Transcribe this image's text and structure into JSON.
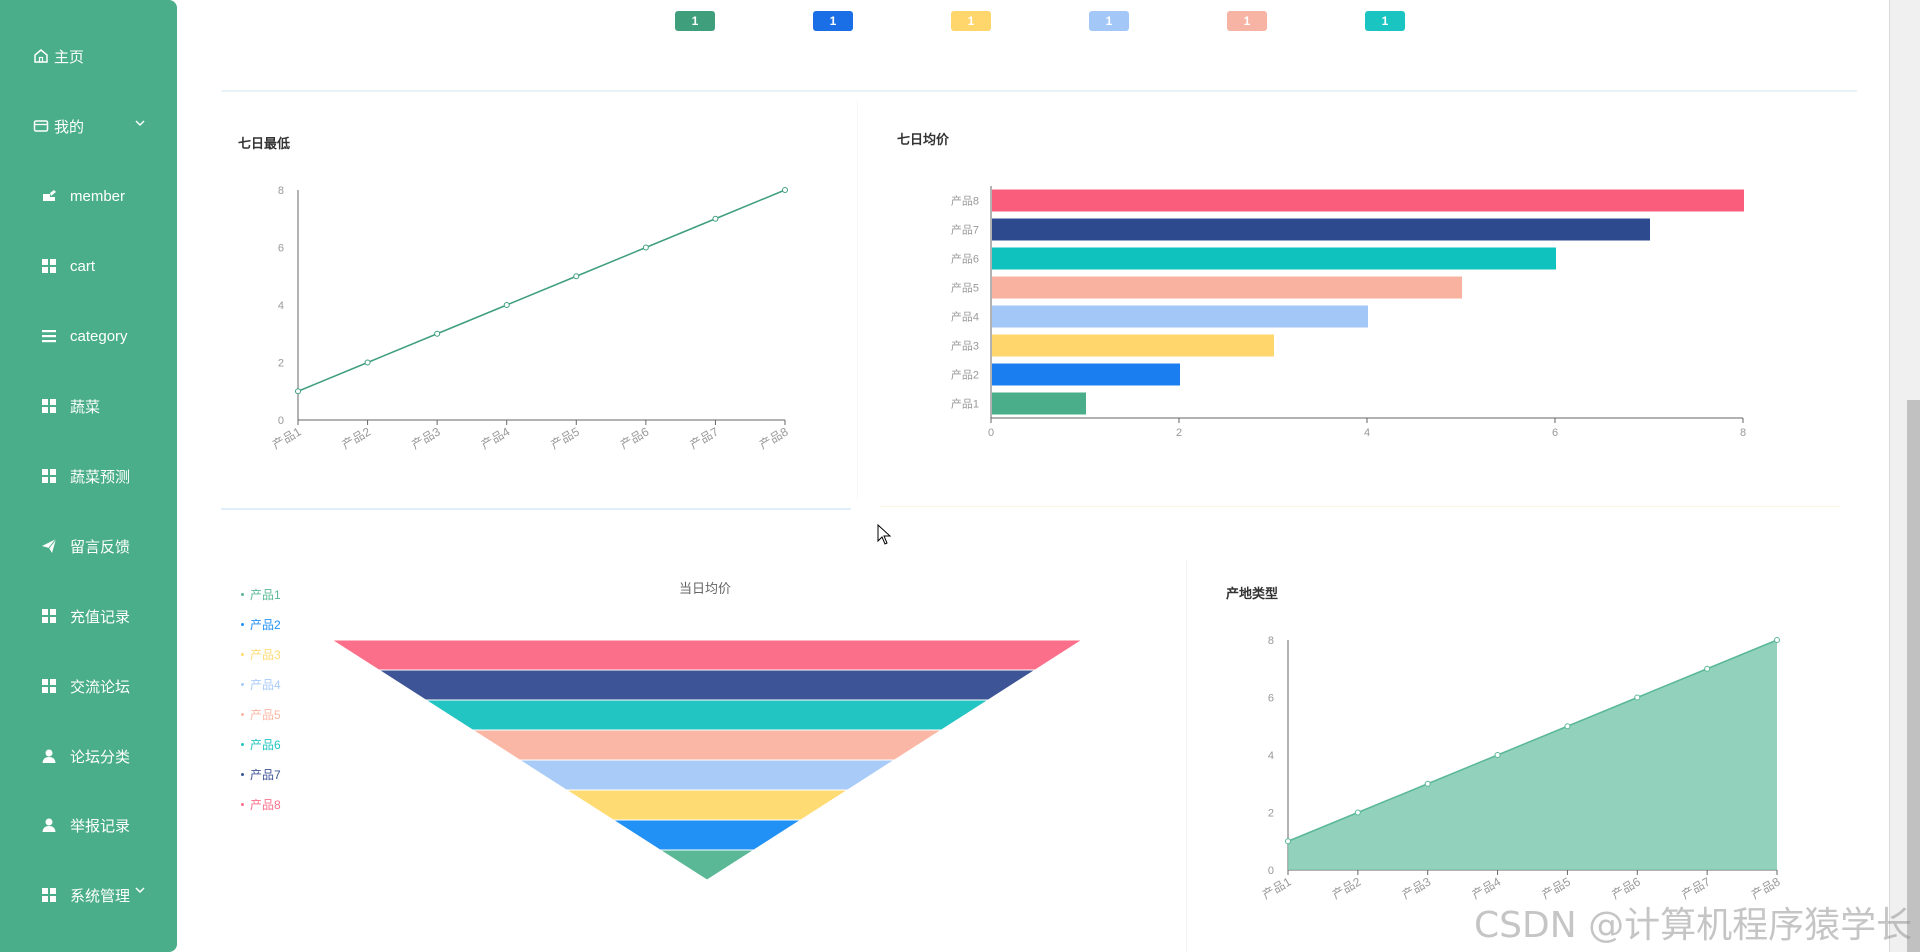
{
  "sidebar": {
    "items": [
      {
        "label": "主页",
        "icon": "home-icon"
      },
      {
        "label": "我的",
        "icon": "wallet-icon",
        "expand": true
      },
      {
        "label": "member",
        "icon": "id-card-icon"
      },
      {
        "label": "cart",
        "icon": "grid-icon"
      },
      {
        "label": "category",
        "icon": "list-icon"
      },
      {
        "label": "蔬菜",
        "icon": "grid-icon"
      },
      {
        "label": "蔬菜预测",
        "icon": "grid-icon"
      },
      {
        "label": "留言反馈",
        "icon": "paper-plane-icon"
      },
      {
        "label": "充值记录",
        "icon": "grid-icon"
      },
      {
        "label": "交流论坛",
        "icon": "grid-icon"
      },
      {
        "label": "论坛分类",
        "icon": "user-icon"
      },
      {
        "label": "举报记录",
        "icon": "user-icon"
      },
      {
        "label": "系统管理",
        "icon": "grid-icon",
        "expand": true
      }
    ]
  },
  "badges": [
    {
      "value": "1",
      "color": "#3f9f7d"
    },
    {
      "value": "1",
      "color": "#1a6ee6"
    },
    {
      "value": "1",
      "color": "#ffd66b"
    },
    {
      "value": "1",
      "color": "#a3c7f7"
    },
    {
      "value": "1",
      "color": "#f7b3a3"
    },
    {
      "value": "1",
      "color": "#1ac4c0"
    }
  ],
  "cards": {
    "line": {
      "title": "七日最低"
    },
    "bar": {
      "title": "七日均价"
    },
    "funnel": {
      "title": "当日均价"
    },
    "area": {
      "title": "产地类型"
    }
  },
  "watermark": "CSDN @计算机程序猿学长",
  "chart_data": [
    {
      "type": "line",
      "title": "七日最低",
      "categories": [
        "产品1",
        "产品2",
        "产品3",
        "产品4",
        "产品5",
        "产品6",
        "产品7",
        "产品8"
      ],
      "values": [
        1,
        2,
        3,
        4,
        5,
        6,
        7,
        8
      ],
      "ylim": [
        0,
        8
      ],
      "yticks": [
        0,
        2,
        4,
        6,
        8
      ],
      "color": "#3f9f7d"
    },
    {
      "type": "bar",
      "orientation": "horizontal",
      "title": "七日均价",
      "categories": [
        "产品1",
        "产品2",
        "产品3",
        "产品4",
        "产品5",
        "产品6",
        "产品7",
        "产品8"
      ],
      "values": [
        1,
        2,
        3,
        4,
        5,
        6,
        7,
        8
      ],
      "xlim": [
        0,
        8
      ],
      "xticks": [
        0,
        2,
        4,
        6,
        8
      ],
      "colors": [
        "#4aae8a",
        "#1a7ef0",
        "#ffd66b",
        "#a3c7f7",
        "#f8b29f",
        "#10c2bd",
        "#2e4a8f",
        "#fa5c7c"
      ]
    },
    {
      "type": "funnel",
      "title": "当日均价",
      "categories": [
        "产品1",
        "产品2",
        "产品3",
        "产品4",
        "产品5",
        "产品6",
        "产品7",
        "产品8"
      ],
      "values": [
        1,
        2,
        3,
        4,
        5,
        6,
        7,
        8
      ],
      "colors": [
        "#5ab896",
        "#2191f5",
        "#ffdb73",
        "#a8cbf8",
        "#fbb7a6",
        "#22c5c1",
        "#3d5596",
        "#fb6f8a"
      ],
      "legend": "left"
    },
    {
      "type": "area",
      "title": "产地类型",
      "categories": [
        "产品1",
        "产品2",
        "产品3",
        "产品4",
        "产品5",
        "产品6",
        "产品7",
        "产品8"
      ],
      "values": [
        1,
        2,
        3,
        4,
        5,
        6,
        7,
        8
      ],
      "ylim": [
        0,
        8
      ],
      "yticks": [
        0,
        2,
        4,
        6,
        8
      ],
      "color": "#7fcab0"
    }
  ]
}
